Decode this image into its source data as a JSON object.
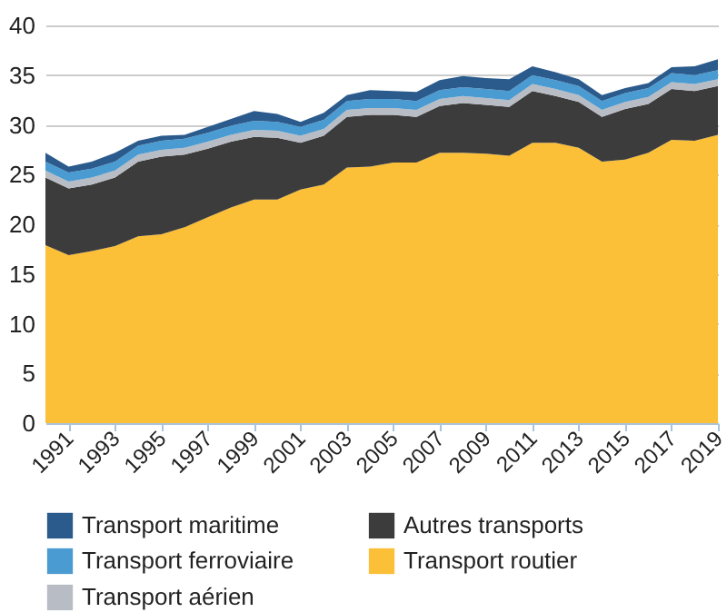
{
  "chart_data": {
    "type": "area",
    "stacked": true,
    "legend": "bottom",
    "grid": "y",
    "x": [
      1990,
      1991,
      1992,
      1993,
      1994,
      1995,
      1996,
      1997,
      1998,
      1999,
      2000,
      2001,
      2002,
      2003,
      2004,
      2005,
      2006,
      2007,
      2008,
      2009,
      2010,
      2011,
      2012,
      2013,
      2014,
      2015,
      2016,
      2017,
      2018,
      2019
    ],
    "xlim": [
      1990,
      2019
    ],
    "xticks": [
      1991,
      1993,
      1995,
      1997,
      1999,
      2001,
      2003,
      2005,
      2007,
      2009,
      2011,
      2013,
      2015,
      2017,
      2019
    ],
    "ylim": [
      0,
      40
    ],
    "yticks": [
      0,
      5,
      10,
      15,
      20,
      25,
      30,
      35,
      40
    ],
    "series": [
      {
        "name": "Transport routier",
        "color": "#fbbf38",
        "values": [
          17.9,
          16.9,
          17.3,
          17.8,
          18.8,
          19.0,
          19.7,
          20.7,
          21.7,
          22.5,
          22.5,
          23.5,
          24.0,
          25.7,
          25.8,
          26.2,
          26.2,
          27.2,
          27.2,
          27.1,
          26.9,
          28.2,
          28.2,
          27.7,
          26.3,
          26.5,
          27.2,
          28.5,
          28.4,
          29.0
        ]
      },
      {
        "name": "Autres transports",
        "color": "#3c3c3c",
        "values": [
          6.8,
          6.7,
          6.7,
          6.9,
          7.5,
          7.8,
          7.3,
          6.9,
          6.6,
          6.3,
          6.2,
          4.7,
          4.9,
          5.1,
          5.2,
          4.8,
          4.6,
          4.7,
          5.0,
          4.9,
          4.9,
          5.2,
          4.7,
          4.6,
          4.5,
          5.1,
          4.9,
          5.1,
          5.0,
          4.9
        ]
      },
      {
        "name": "Transport aérien",
        "color": "#b8bcc4",
        "values": [
          0.7,
          0.7,
          0.7,
          0.7,
          0.7,
          0.7,
          0.7,
          0.7,
          0.7,
          0.7,
          0.7,
          0.7,
          0.7,
          0.7,
          0.7,
          0.7,
          0.7,
          0.7,
          0.7,
          0.7,
          0.7,
          0.7,
          0.7,
          0.7,
          0.7,
          0.7,
          0.7,
          0.7,
          0.7,
          0.7
        ]
      },
      {
        "name": "Transport ferroviaire",
        "color": "#4a9bd1",
        "values": [
          0.9,
          0.9,
          0.9,
          0.9,
          0.9,
          0.9,
          0.9,
          0.9,
          0.9,
          0.9,
          0.9,
          0.9,
          0.9,
          0.9,
          0.9,
          0.9,
          0.9,
          0.9,
          0.9,
          0.9,
          0.9,
          0.9,
          0.9,
          0.9,
          0.9,
          0.9,
          0.9,
          0.9,
          0.9,
          0.9
        ]
      },
      {
        "name": "Transport maritime",
        "color": "#2b5b8c",
        "values": [
          0.9,
          0.6,
          0.7,
          0.9,
          0.5,
          0.5,
          0.4,
          0.6,
          0.7,
          1.0,
          0.8,
          0.5,
          0.7,
          0.6,
          0.9,
          0.8,
          0.9,
          1.0,
          1.1,
          1.1,
          1.2,
          0.9,
          0.8,
          0.7,
          0.6,
          0.5,
          0.5,
          0.6,
          0.9,
          1.1
        ]
      }
    ]
  }
}
